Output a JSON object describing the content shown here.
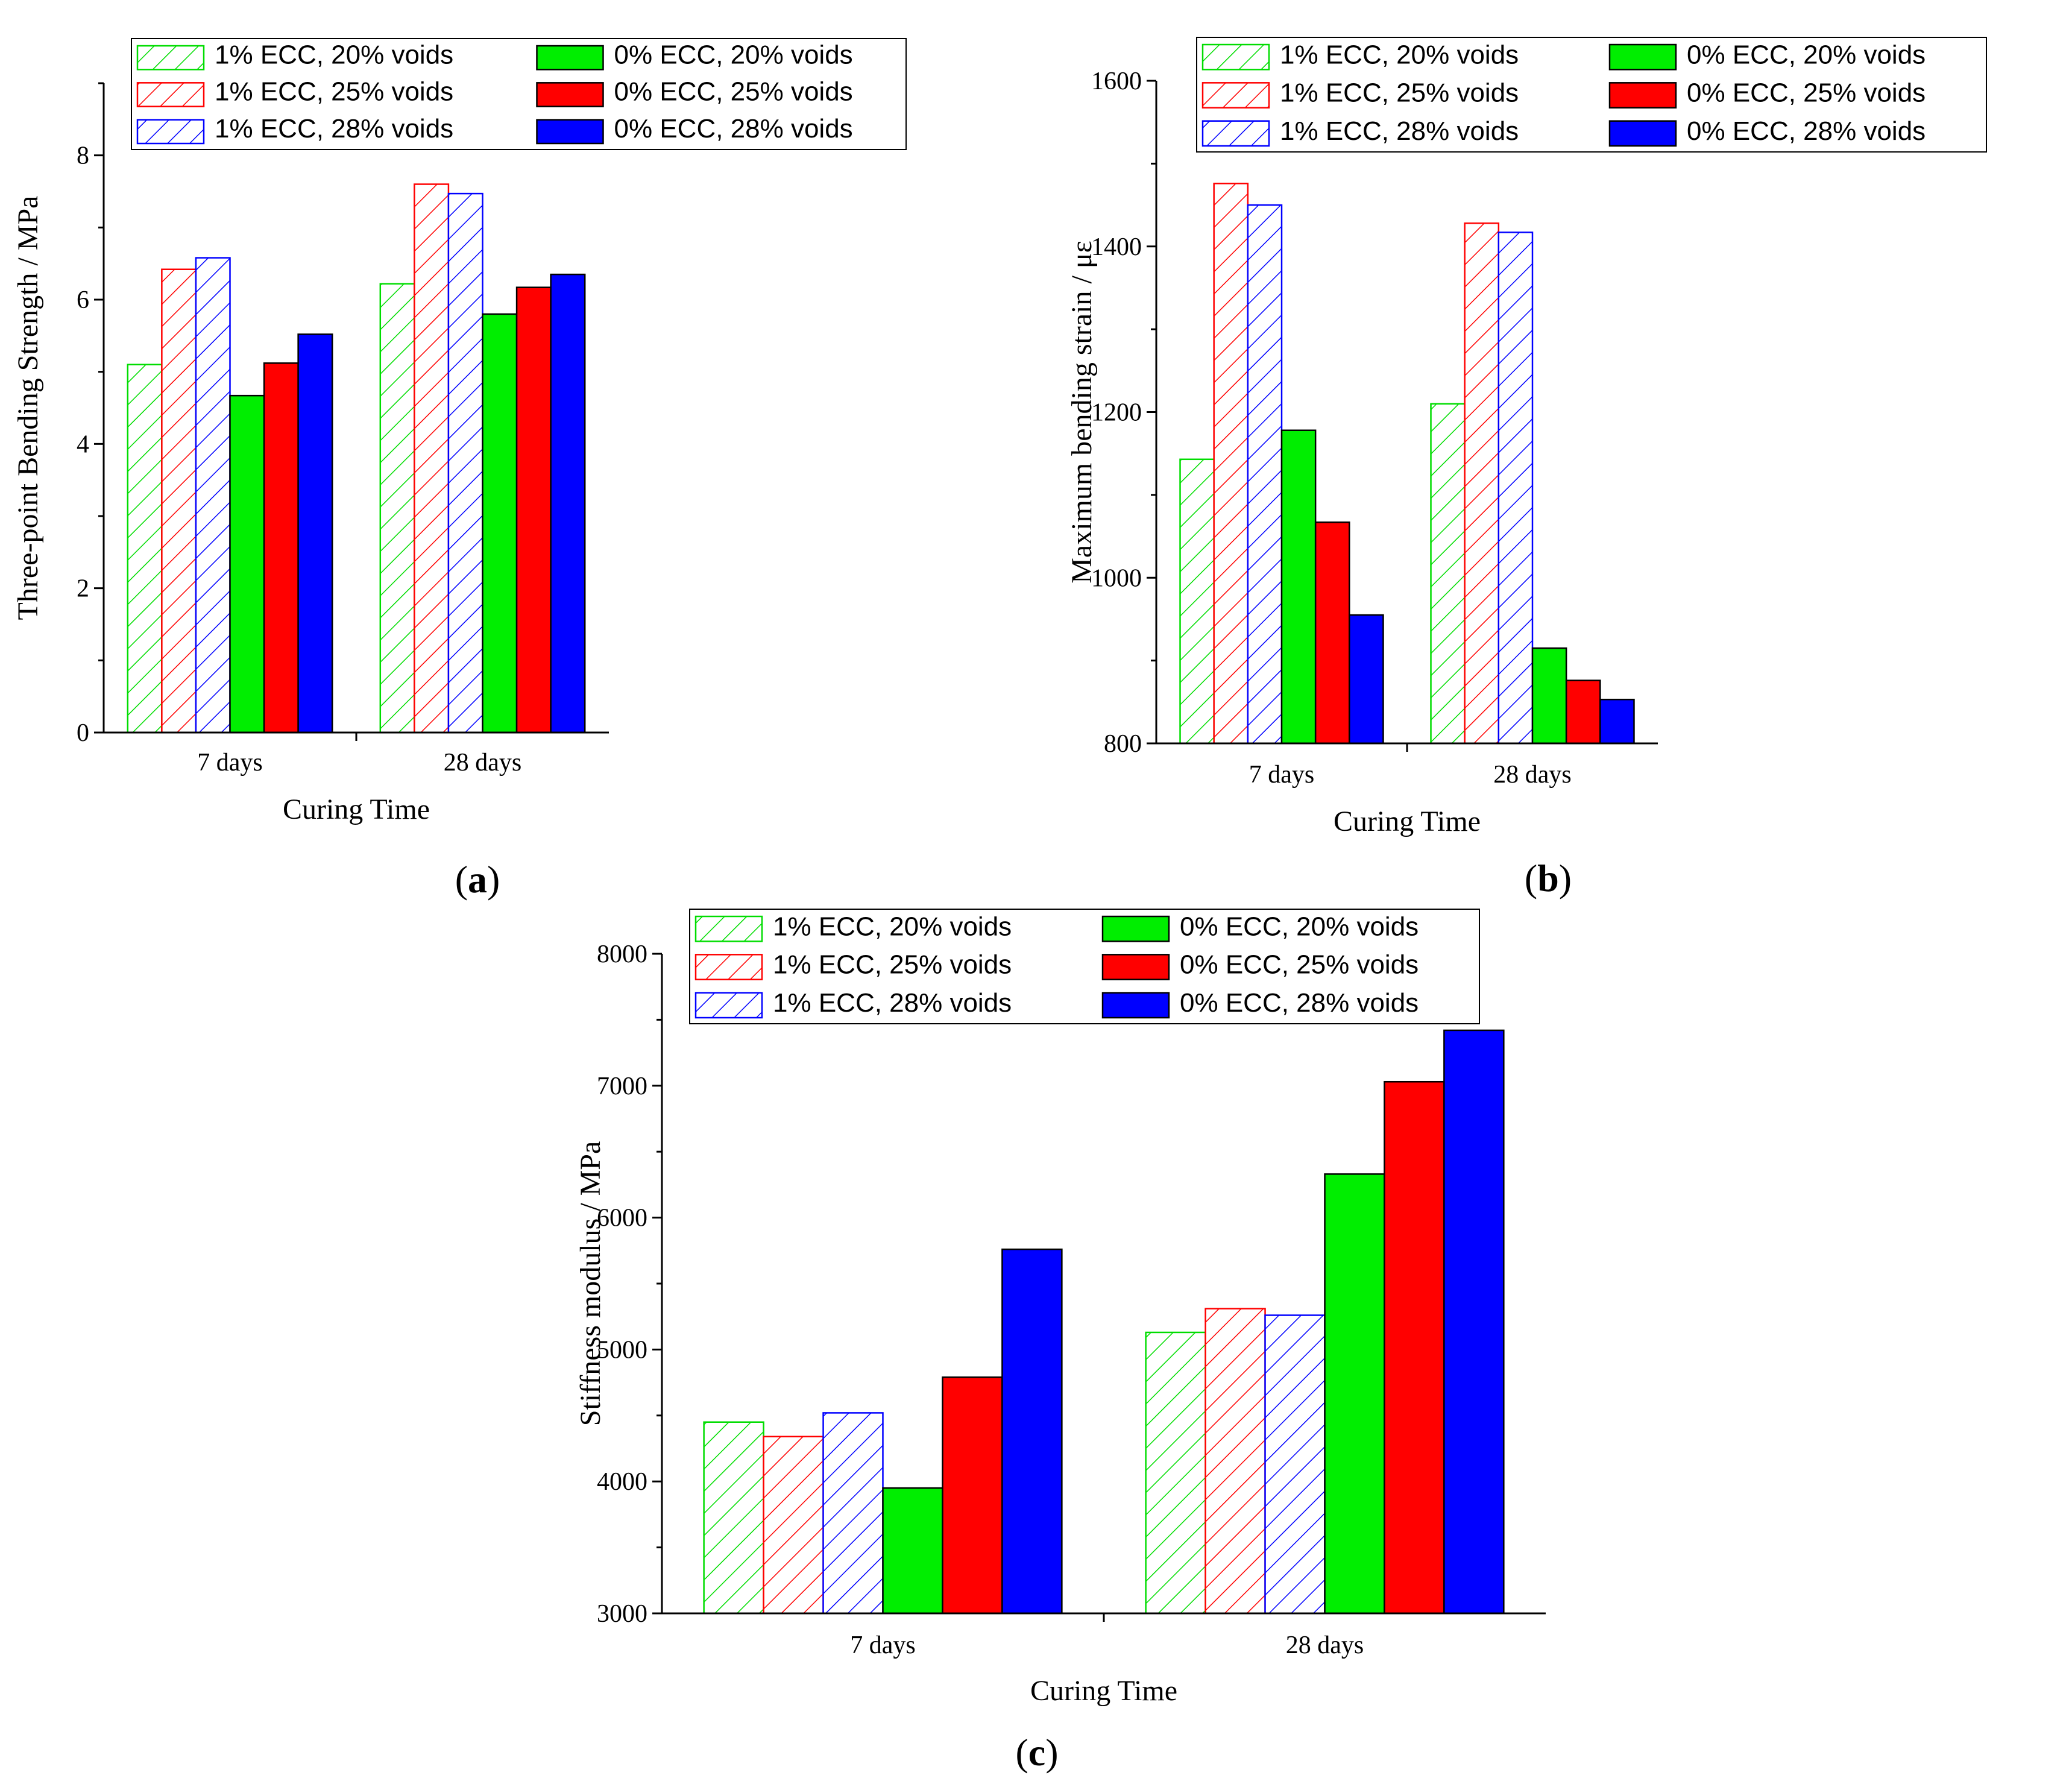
{
  "chart_data": [
    {
      "panel_label_letter": "a",
      "type": "bar",
      "categories": [
        "7 days",
        "28 days"
      ],
      "xlabel": "Curing Time",
      "ylabel": "Three-point Bending Strength / MPa",
      "ylim": [
        0,
        9
      ],
      "yticks": [
        0,
        2,
        4,
        6,
        8
      ],
      "series": [
        {
          "name": "1% ECC, 20% voids",
          "values": [
            5.1,
            6.22
          ],
          "color": "#00dd00",
          "fill": "hatch"
        },
        {
          "name": "1% ECC, 25% voids",
          "values": [
            6.42,
            7.6
          ],
          "color": "#ff0000",
          "fill": "hatch"
        },
        {
          "name": "1% ECC, 28% voids",
          "values": [
            6.58,
            7.47
          ],
          "color": "#0000ff",
          "fill": "hatch"
        },
        {
          "name": "0% ECC, 20% voids",
          "values": [
            4.67,
            5.8
          ],
          "color": "#00ee00",
          "fill": "solid"
        },
        {
          "name": "0% ECC, 25% voids",
          "values": [
            5.12,
            6.17
          ],
          "color": "#ff0000",
          "fill": "solid"
        },
        {
          "name": "0% ECC, 28% voids",
          "values": [
            5.52,
            6.35
          ],
          "color": "#0000ff",
          "fill": "solid"
        }
      ]
    },
    {
      "panel_label_letter": "b",
      "type": "bar",
      "categories": [
        "7 days",
        "28 days"
      ],
      "xlabel": "Curing Time",
      "ylabel": "Maximum bending strain / με",
      "ylim": [
        800,
        1600
      ],
      "yticks": [
        800,
        1000,
        1200,
        1400,
        1600
      ],
      "series": [
        {
          "name": "1% ECC, 20% voids",
          "values": [
            1143,
            1210
          ],
          "color": "#00dd00",
          "fill": "hatch"
        },
        {
          "name": "1% ECC, 25% voids",
          "values": [
            1476,
            1428
          ],
          "color": "#ff0000",
          "fill": "hatch"
        },
        {
          "name": "1% ECC, 28% voids",
          "values": [
            1450,
            1417
          ],
          "color": "#0000ff",
          "fill": "hatch"
        },
        {
          "name": "0% ECC, 20% voids",
          "values": [
            1178,
            915
          ],
          "color": "#00ee00",
          "fill": "solid"
        },
        {
          "name": "0% ECC, 25% voids",
          "values": [
            1067,
            876
          ],
          "color": "#ff0000",
          "fill": "solid"
        },
        {
          "name": "0% ECC, 28% voids",
          "values": [
            955,
            853
          ],
          "color": "#0000ff",
          "fill": "solid"
        }
      ]
    },
    {
      "panel_label_letter": "c",
      "type": "bar",
      "categories": [
        "7 days",
        "28 days"
      ],
      "xlabel": "Curing Time",
      "ylabel": "Stiffness modulus / MPa",
      "ylim": [
        3000,
        8000
      ],
      "yticks": [
        3000,
        4000,
        5000,
        6000,
        7000,
        8000
      ],
      "series": [
        {
          "name": "1% ECC, 20% voids",
          "values": [
            4450,
            5130
          ],
          "color": "#00dd00",
          "fill": "hatch"
        },
        {
          "name": "1% ECC, 25% voids",
          "values": [
            4340,
            5310
          ],
          "color": "#ff0000",
          "fill": "hatch"
        },
        {
          "name": "1% ECC, 28% voids",
          "values": [
            4520,
            5260
          ],
          "color": "#0000ff",
          "fill": "hatch"
        },
        {
          "name": "0% ECC, 20% voids",
          "values": [
            3950,
            6330
          ],
          "color": "#00ee00",
          "fill": "solid"
        },
        {
          "name": "0% ECC, 25% voids",
          "values": [
            4790,
            7030
          ],
          "color": "#ff0000",
          "fill": "solid"
        },
        {
          "name": "0% ECC, 28% voids",
          "values": [
            5760,
            7420
          ],
          "color": "#0000ff",
          "fill": "solid"
        }
      ]
    }
  ]
}
